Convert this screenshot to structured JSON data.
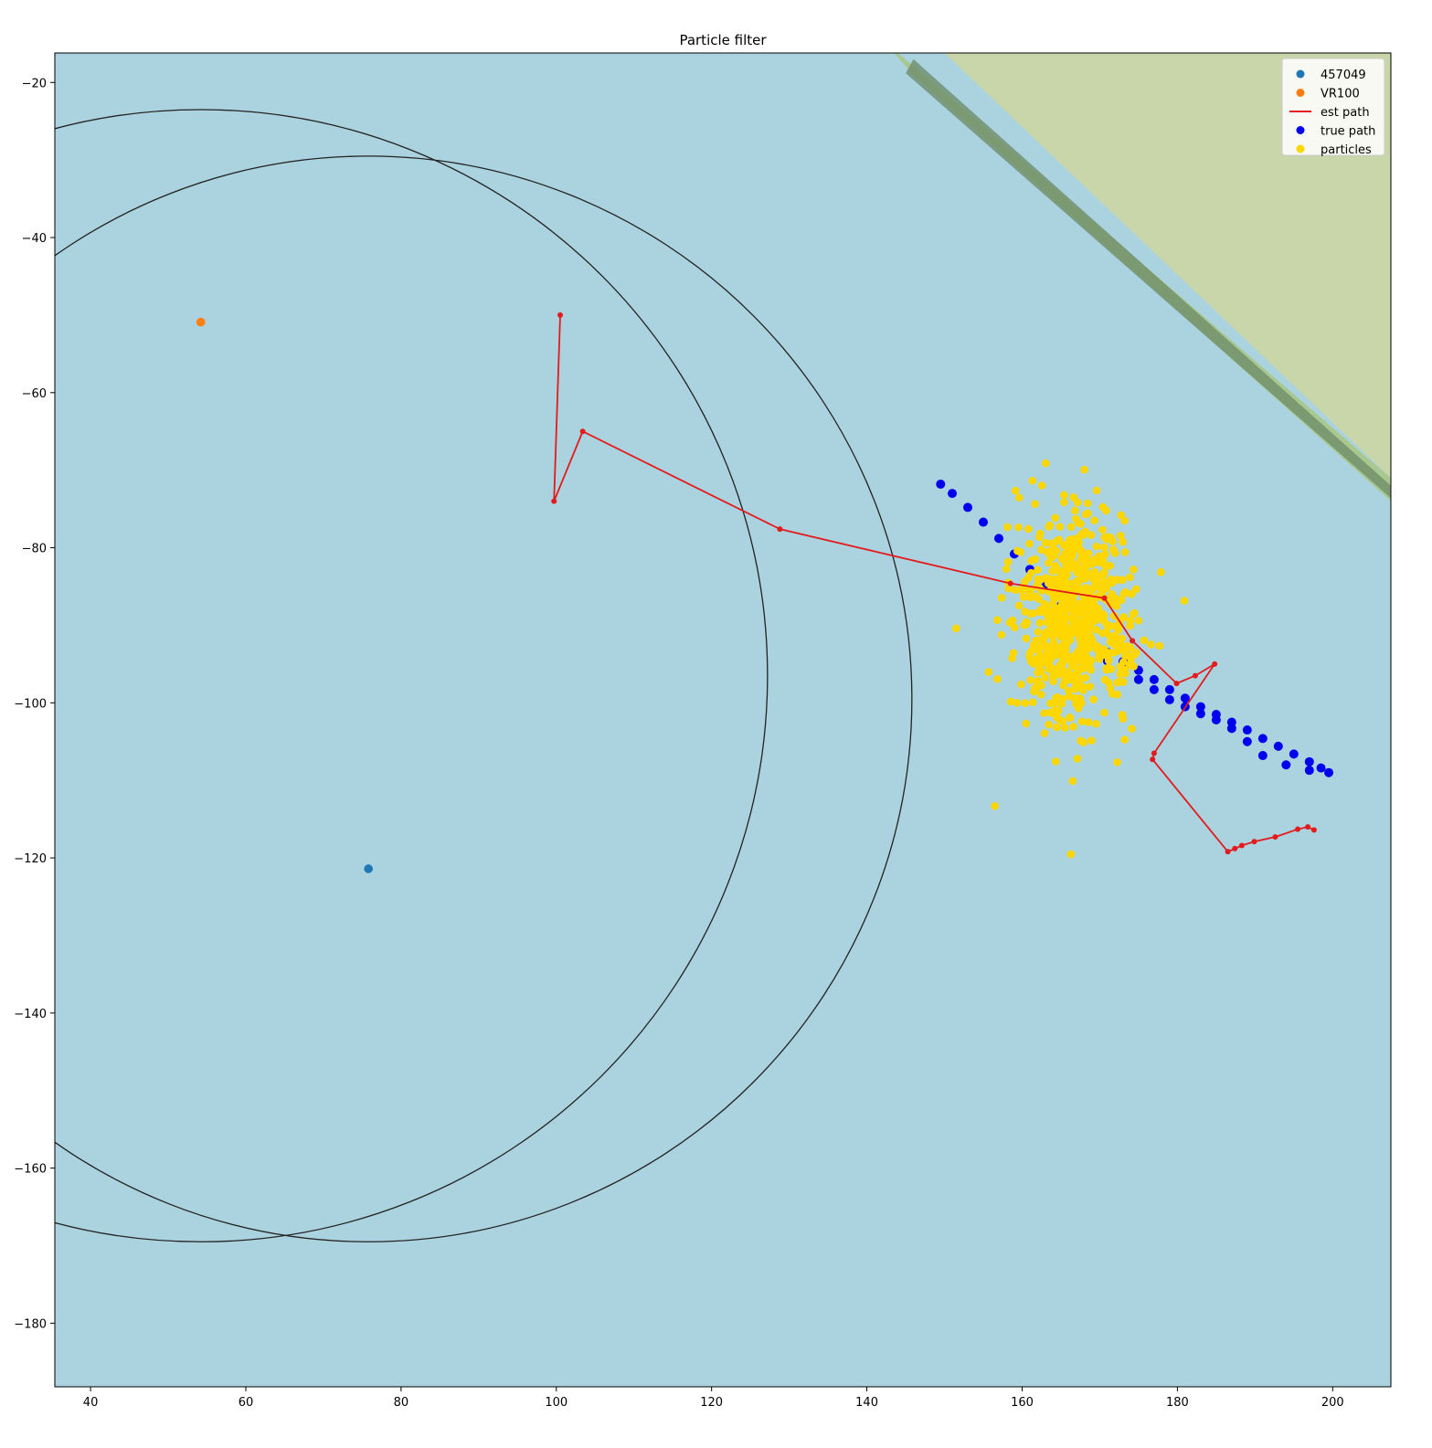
{
  "chart_data": {
    "type": "scatter",
    "title": "Particle filter",
    "xlabel": "",
    "ylabel": "",
    "xlim": [
      35.4,
      207.5
    ],
    "ylim": [
      -188.2,
      -16.2
    ],
    "x_ticks": [
      40,
      60,
      80,
      100,
      120,
      140,
      160,
      180,
      200
    ],
    "y_ticks": [
      -20,
      -40,
      -60,
      -80,
      -100,
      -120,
      -140,
      -160,
      -180
    ],
    "x_tick_labels": [
      "40",
      "60",
      "80",
      "100",
      "120",
      "140",
      "160",
      "180",
      "200"
    ],
    "y_tick_labels": [
      "−20",
      "−40",
      "−60",
      "−80",
      "−100",
      "−120",
      "−140",
      "−160",
      "−180"
    ],
    "grid": false,
    "legend_position": "top-right",
    "background": {
      "water": "#aad3df",
      "land": "#c8d6aa",
      "shore": "#a8c890",
      "shore_dark": "#6f8f6a"
    },
    "anchors": [
      {
        "name": "457049",
        "x": 75.8,
        "y": -121.4,
        "color": "#1f77b4"
      },
      {
        "name": "VR100",
        "x": 54.2,
        "y": -50.9,
        "color": "#ff7f0e"
      }
    ],
    "range_circles": [
      {
        "cx": 75.8,
        "cy": -99.5,
        "r": 70
      },
      {
        "cx": 54.2,
        "cy": -96.5,
        "r": 73
      }
    ],
    "series": [
      {
        "name": "est path",
        "kind": "line",
        "color": "#e41a1c",
        "x": [
          100.5,
          99.7,
          103.4,
          128.8,
          158.5,
          170.6,
          174.2,
          179.9,
          182.3,
          184.8,
          177.0,
          176.8,
          186.5,
          187.4,
          188.3,
          189.9,
          192.6,
          195.5,
          196.8,
          197.6
        ],
        "y": [
          -50.0,
          -74.0,
          -65.0,
          -77.6,
          -84.6,
          -86.5,
          -92.0,
          -97.5,
          -96.5,
          -95.0,
          -106.5,
          -107.3,
          -119.2,
          -118.8,
          -118.4,
          -117.9,
          -117.3,
          -116.3,
          -116.0,
          -116.4
        ]
      },
      {
        "name": "true path",
        "kind": "points",
        "color": "#0000ee",
        "x": [
          149.5,
          151.0,
          153.0,
          155.0,
          157.0,
          159.0,
          161.0,
          163.0,
          165.0,
          167.0,
          169.0,
          171.0,
          173.0,
          175.0,
          177.0,
          179.0,
          181.0,
          183.0,
          185.0,
          187.0,
          189.0,
          191.0,
          193.0,
          195.0,
          197.0,
          198.5,
          199.5,
          197.0,
          194.0,
          191.0,
          189.0,
          187.0,
          185.0,
          183.0,
          181.0,
          179.0,
          177.0,
          175.0,
          173.0,
          171.0
        ],
        "y": [
          -71.8,
          -73.0,
          -74.8,
          -76.7,
          -78.8,
          -80.8,
          -82.8,
          -85.0,
          -87.5,
          -90.0,
          -92.2,
          -93.5,
          -94.7,
          -95.8,
          -97.0,
          -98.3,
          -99.4,
          -100.5,
          -101.5,
          -102.5,
          -103.5,
          -104.6,
          -105.6,
          -106.6,
          -107.6,
          -108.4,
          -109.0,
          -108.7,
          -108.0,
          -106.8,
          -105.0,
          -103.3,
          -102.2,
          -101.4,
          -100.5,
          -99.6,
          -98.3,
          -97.0,
          -95.6,
          -94.6
        ]
      },
      {
        "name": "particles",
        "kind": "cloud",
        "color": "#ffd700",
        "count": 700,
        "center": [
          166.5,
          -89.0
        ],
        "spread": [
          3.7,
          6.8
        ],
        "seed": 7
      }
    ],
    "legend": [
      {
        "label": "457049",
        "color": "#1f77b4",
        "marker": "dot"
      },
      {
        "label": "VR100",
        "color": "#ff7f0e",
        "marker": "dot"
      },
      {
        "label": "est path",
        "color": "#e41a1c",
        "marker": "line"
      },
      {
        "label": "true path",
        "color": "#0000ee",
        "marker": "dot"
      },
      {
        "label": "particles",
        "color": "#ffd700",
        "marker": "dot"
      }
    ]
  }
}
